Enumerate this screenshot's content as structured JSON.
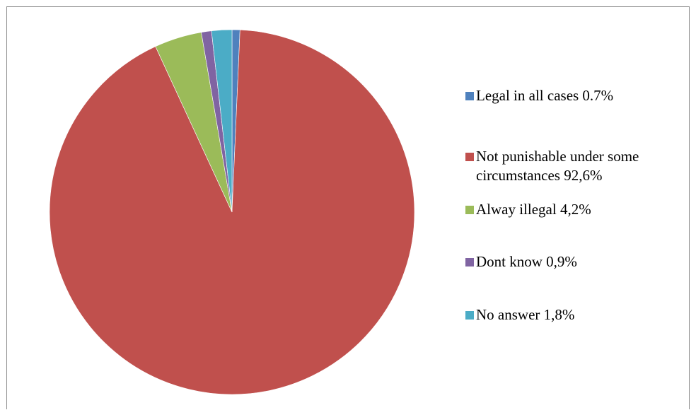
{
  "chart_data": {
    "type": "pie",
    "title": "",
    "slices": [
      {
        "label": "Legal in all cases 0.7%",
        "value": 0.7,
        "color": "#4F81BD"
      },
      {
        "label": "Not punishable under some circumstances 92,6%",
        "value": 92.6,
        "color": "#C0504D"
      },
      {
        "label": "Alway illegal 4,2%",
        "value": 4.2,
        "color": "#9BBB59"
      },
      {
        "label": "Dont know 0,9%",
        "value": 0.9,
        "color": "#8064A2"
      },
      {
        "label": "No answer 1,8%",
        "value": 1.8,
        "color": "#4BACC6"
      }
    ],
    "start_angle_deg": 0,
    "direction": "clockwise",
    "legend_position": "right"
  }
}
